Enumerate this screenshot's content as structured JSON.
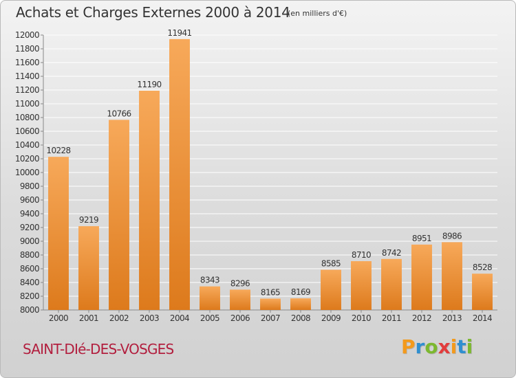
{
  "title": "Achats et Charges Externes 2000 à 2014",
  "subtitle": "(en milliers d'€)",
  "town": "SAINT-DIé-DES-VOSGES",
  "logo": {
    "letters": [
      "P",
      "r",
      "o",
      "x",
      "i",
      "t",
      "i"
    ],
    "colors": [
      "#f39a1c",
      "#2f8fd0",
      "#7cb82f",
      "#e23c3c",
      "#f39a1c",
      "#2f8fd0",
      "#7cb82f"
    ]
  },
  "colors": {
    "bar_top": "#f7a95a",
    "bar_bottom": "#dd7a1c",
    "title": "#333333",
    "town": "#b21e3e",
    "grid": "#ffffff",
    "axis": "#888888"
  },
  "chart_data": {
    "type": "bar",
    "title": "Achats et Charges Externes 2000 à 2014",
    "subtitle": "(en milliers d'€)",
    "xlabel": "",
    "ylabel": "",
    "ylim": [
      8000,
      12000
    ],
    "yticks": [
      8000,
      8200,
      8400,
      8600,
      8800,
      9000,
      9200,
      9400,
      9600,
      9800,
      10000,
      10200,
      10400,
      10600,
      10800,
      11000,
      11200,
      11400,
      11600,
      11800,
      12000
    ],
    "grid": true,
    "categories": [
      "2000",
      "2001",
      "2002",
      "2003",
      "2004",
      "2005",
      "2006",
      "2007",
      "2008",
      "2009",
      "2010",
      "2011",
      "2012",
      "2013",
      "2014"
    ],
    "values": [
      10228,
      9219,
      10766,
      11190,
      11941,
      8343,
      8296,
      8165,
      8169,
      8585,
      8710,
      8742,
      8951,
      8986,
      8528
    ]
  }
}
